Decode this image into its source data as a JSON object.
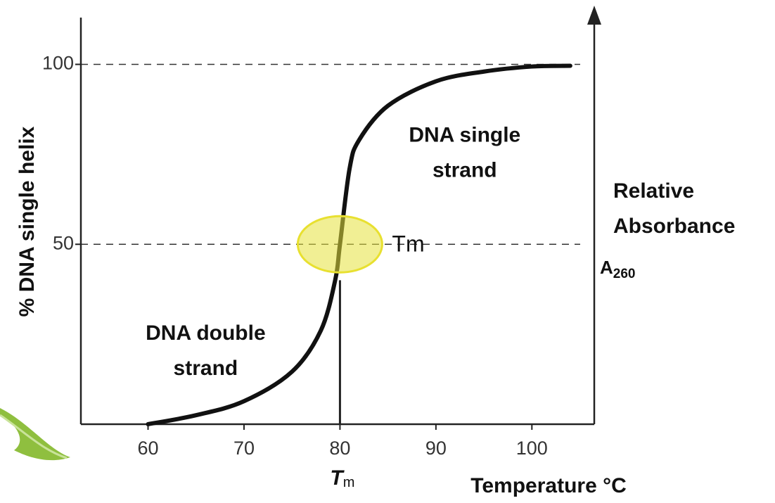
{
  "chart_data": {
    "type": "line",
    "x": [
      60,
      65,
      70,
      75,
      78,
      79.5,
      80,
      81,
      82,
      85,
      90,
      95,
      100,
      104
    ],
    "values": [
      0,
      2.5,
      6.4,
      14.6,
      26,
      40,
      50,
      71,
      79,
      88.5,
      95.3,
      98,
      99.4,
      99.6
    ],
    "color": "#111111",
    "xlim": [
      53,
      106.5
    ],
    "ylim": [
      0,
      113
    ],
    "xticks": [
      60,
      70,
      80,
      90,
      100
    ],
    "yticks": [
      50,
      100
    ],
    "grid": true,
    "x_label": "Temperature °C",
    "y_label": "% DNA single helix",
    "right_axis_label": [
      "Relative",
      "Absorbance"
    ],
    "right_axis_symbol": "A",
    "right_axis_symbol_sub": "260",
    "tm_marker": 80,
    "tm_axis_label": "T",
    "tm_axis_label_sub": "m",
    "tm_annotation": "Tm",
    "annotations": [
      {
        "lines": [
          "DNA single",
          "strand"
        ],
        "x": 93,
        "y": 80
      },
      {
        "lines": [
          "DNA double",
          "strand"
        ],
        "x": 66,
        "y": 25
      }
    ]
  }
}
